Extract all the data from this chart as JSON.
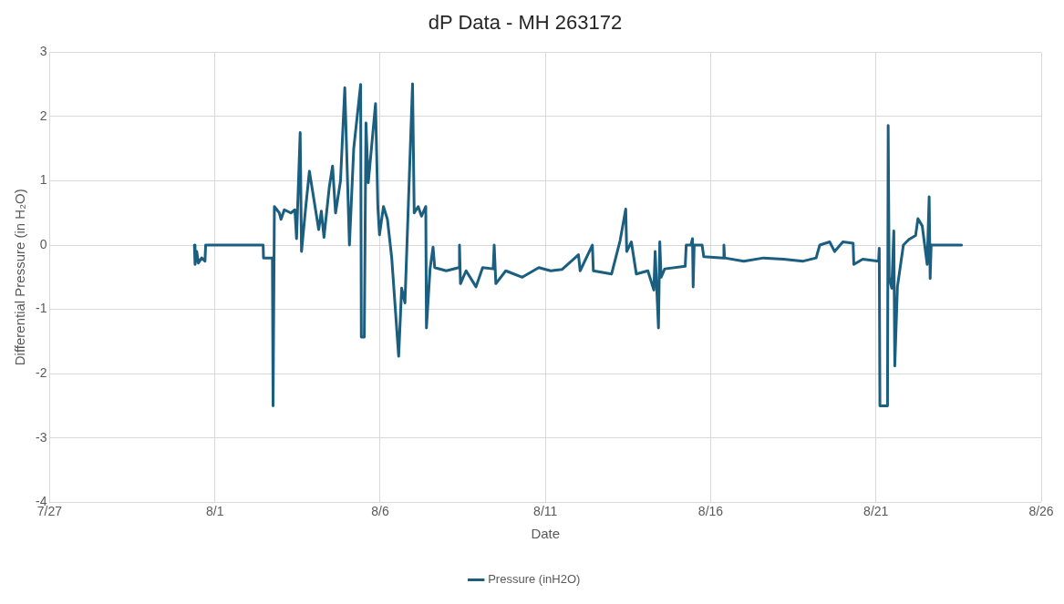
{
  "chart_data": {
    "type": "line",
    "title": "dP Data - MH 263172",
    "xlabel": "Date",
    "ylabel": "Differential Pressure (in H₂O)",
    "xlim": [
      "--07-27",
      "--08-26"
    ],
    "xticks": [
      {
        "value": "--07-27",
        "label": "7/27"
      },
      {
        "value": "--08-01",
        "label": "8/1"
      },
      {
        "value": "--08-06",
        "label": "8/6"
      },
      {
        "value": "--08-11",
        "label": "8/11"
      },
      {
        "value": "--08-16",
        "label": "8/16"
      },
      {
        "value": "--08-21",
        "label": "8/21"
      },
      {
        "value": "--08-26",
        "label": "8/26"
      }
    ],
    "ylim": [
      -4,
      3
    ],
    "yticks": [
      -4,
      -3,
      -2,
      -1,
      0,
      1,
      2,
      3
    ],
    "grid": true,
    "legend": "bottom",
    "marker": "none",
    "line_style": "solid",
    "series": [
      {
        "name": "Pressure (inH2O)",
        "color": "#1a5e80",
        "x": [
          "--07-31T09:07",
          "--07-31T09:36",
          "--07-31T10:48",
          "--07-31T12:00",
          "--07-31T14:24",
          "--07-31T16:48",
          "--07-31T17:17",
          "--08-02T11:02",
          "--08-02T11:17",
          "--08-02T17:46",
          "--08-02T18:14",
          "--08-02T19:12",
          "--08-02T22:48",
          "--08-03T00:00",
          "--08-03T02:24",
          "--08-03T07:12",
          "--08-03T10:05",
          "--08-03T11:17",
          "--08-03T13:55",
          "--08-03T14:53",
          "--08-03T18:00",
          "--08-03T20:38",
          "--08-04T03:22",
          "--08-04T05:17",
          "--08-04T07:12",
          "--08-04T11:02",
          "--08-04T13:26",
          "--08-04T15:36",
          "--08-04T19:12",
          "--08-04T22:19",
          "--08-05T01:41",
          "--08-05T04:48",
          "--08-05T09:50",
          "--08-05T10:19",
          "--08-05T12:29",
          "--08-05T13:41",
          "--08-05T15:22",
          "--08-05T20:38",
          "--08-05T22:19",
          "--08-05T23:31",
          "--08-06T02:24",
          "--08-06T05:17",
          "--08-06T08:24",
          "--08-06T13:26",
          "--08-06T15:36",
          "--08-06T18:00",
          "--08-06T23:31",
          "--08-07T00:43",
          "--08-07T03:36",
          "--08-07T06:00",
          "--08-07T09:07",
          "--08-07T09:36",
          "--08-07T12:14",
          "--08-07T14:24",
          "--08-07T15:36",
          "--08-08T00:00",
          "--08-08T09:07",
          "--08-08T09:36",
          "--08-08T10:19",
          "--08-08T14:24",
          "--08-08T21:36",
          "--08-09T02:24",
          "--08-09T10:05",
          "--08-09T10:48",
          "--08-09T12:00",
          "--08-09T19:12",
          "--08-10T07:12",
          "--08-10T19:12",
          "--08-11T03:50",
          "--08-11T12:00",
          "--08-12T00:00",
          "--08-12T01:12",
          "--08-12T10:05",
          "--08-12T10:48",
          "--08-13T00:00",
          "--08-13T06:14",
          "--08-13T10:19",
          "--08-13T11:02",
          "--08-13T14:24",
          "--08-13T18:00",
          "--08-14T02:24",
          "--08-14T06:43",
          "--08-14T07:41",
          "--08-14T10:05",
          "--08-14T11:02",
          "--08-14T12:00",
          "--08-14T14:38",
          "--08-15T05:31",
          "--08-15T06:14",
          "--08-15T09:36",
          "--08-15T10:48",
          "--08-15T11:17",
          "--08-15T12:00",
          "--08-15T17:46",
          "--08-15T18:58",
          "--08-16T09:07",
          "--08-16T09:36",
          "--08-16T10:05",
          "--08-17T00:00",
          "--08-17T14:24",
          "--08-18T04:48",
          "--08-18T19:12",
          "--08-19T04:34",
          "--08-19T07:12",
          "--08-19T14:24",
          "--08-19T18:00",
          "--08-20T00:00",
          "--08-20T07:26",
          "--08-20T07:55",
          "--08-20T14:24",
          "--08-21T01:55",
          "--08-21T02:24",
          "--08-21T02:53",
          "--08-21T08:24",
          "--08-21T08:53",
          "--08-21T09:36",
          "--08-21T11:31",
          "--08-21T12:58",
          "--08-21T13:41",
          "--08-21T15:36",
          "--08-21T19:55",
          "--08-22T00:00",
          "--08-22T04:48",
          "--08-22T06:29",
          "--08-22T09:36",
          "--08-22T13:12",
          "--08-22T14:38",
          "--08-22T15:22",
          "--08-22T16:05",
          "--08-23T14:10"
        ],
        "values": [
          0,
          -0.3,
          -0.1,
          -0.28,
          -0.2,
          -0.25,
          0,
          0,
          -0.2,
          -0.2,
          -2.5,
          0.6,
          0.5,
          0.4,
          0.55,
          0.5,
          0.55,
          0.1,
          1.75,
          -0.1,
          0.6,
          1.15,
          0.24,
          0.53,
          0.12,
          0.9,
          1.23,
          0.5,
          1.0,
          2.45,
          0,
          1.5,
          2.5,
          -1.43,
          -1.43,
          1.9,
          0.97,
          2.2,
          0.6,
          0.16,
          0.6,
          0.4,
          -0.2,
          -1.73,
          -0.67,
          -0.9,
          2.51,
          0.5,
          0.6,
          0.45,
          0.6,
          -1.29,
          -0.37,
          -0.03,
          -0.35,
          -0.4,
          -0.35,
          0,
          -0.6,
          -0.4,
          -0.65,
          -0.35,
          -0.37,
          0,
          -0.6,
          -0.4,
          -0.5,
          -0.35,
          -0.4,
          -0.38,
          -0.15,
          -0.4,
          0,
          -0.4,
          -0.45,
          0.07,
          0.56,
          -0.1,
          0.05,
          -0.45,
          -0.4,
          -0.7,
          -0.1,
          -1.29,
          0.05,
          -0.5,
          -0.37,
          -0.33,
          0,
          0,
          0.1,
          -0.65,
          0,
          0,
          -0.18,
          -0.2,
          0,
          -0.2,
          -0.25,
          -0.2,
          -0.22,
          -0.25,
          -0.2,
          0,
          0.05,
          -0.1,
          0.05,
          0.03,
          -0.3,
          -0.22,
          -0.25,
          -0.05,
          -2.5,
          -2.5,
          1.86,
          -0.5,
          -0.67,
          0.22,
          -1.88,
          -0.65,
          0,
          0.09,
          0.15,
          0.41,
          0.3,
          -0.3,
          0.75,
          -0.52,
          0,
          0
        ]
      }
    ]
  }
}
